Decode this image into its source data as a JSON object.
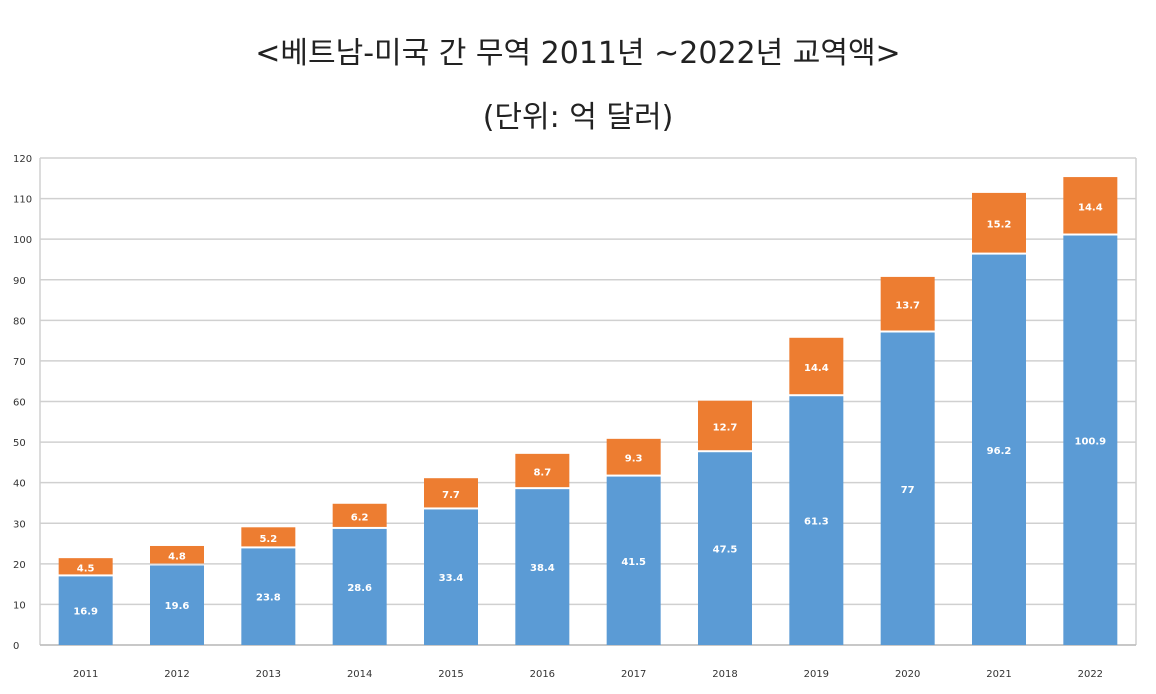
{
  "chart_data": {
    "type": "bar",
    "stacked": true,
    "title": "<베트남-미국 간 무역 2011년 ~2022년 교역액>",
    "subtitle": "(단위: 억 달러)",
    "categories": [
      "2011",
      "2012",
      "2013",
      "2014",
      "2015",
      "2016",
      "2017",
      "2018",
      "2019",
      "2020",
      "2021",
      "2022"
    ],
    "series": [
      {
        "color": "#5b9bd5",
        "values": [
          16.9,
          19.6,
          23.8,
          28.6,
          33.4,
          38.4,
          41.5,
          47.5,
          61.3,
          77,
          96.2,
          100.9
        ],
        "labels": [
          "16.9",
          "19.6",
          "23.8",
          "28.6",
          "33.4",
          "38.4",
          "41.5",
          "47.5",
          "61.3",
          "77",
          "96.2",
          "100.9"
        ]
      },
      {
        "color": "#ed7d31",
        "values": [
          4.5,
          4.8,
          5.2,
          6.2,
          7.7,
          8.7,
          9.3,
          12.7,
          14.4,
          13.7,
          15.2,
          14.4
        ],
        "labels": [
          "4.5",
          "4.8",
          "5.2",
          "6.2",
          "7.7",
          "8.7",
          "9.3",
          "12.7",
          "14.4",
          "13.7",
          "15.2",
          "14.4"
        ]
      }
    ],
    "ylim": [
      0,
      120
    ],
    "yticks": [
      0,
      10,
      20,
      30,
      40,
      50,
      60,
      70,
      80,
      90,
      100,
      110,
      120
    ],
    "grid": true,
    "legend": "none"
  }
}
